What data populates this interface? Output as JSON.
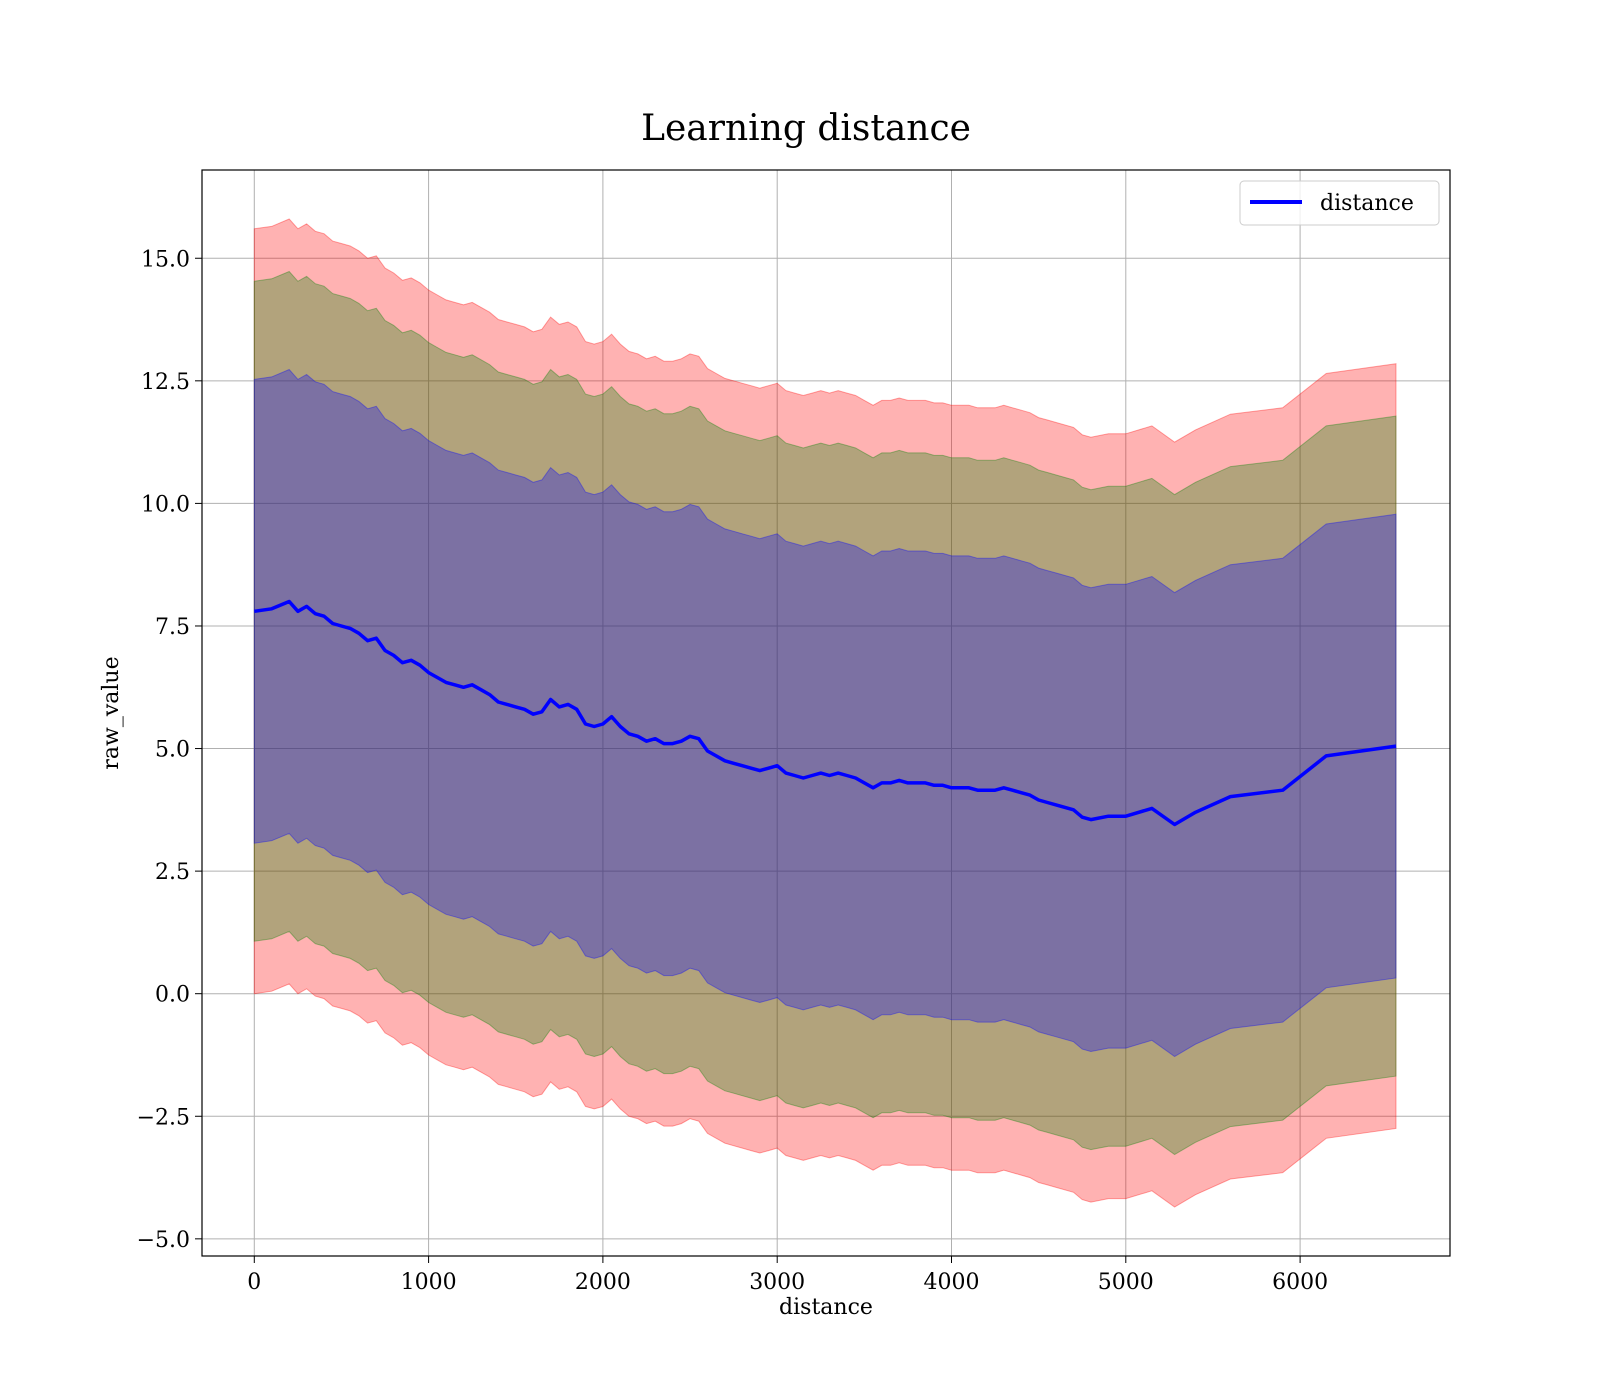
{
  "chart_data": {
    "type": "line",
    "title": "Learning distance",
    "xlabel": "distance",
    "ylabel": "raw_value",
    "xlim": [
      -300,
      6860
    ],
    "ylim": [
      -5.35,
      16.8
    ],
    "xticks": [
      0,
      1000,
      2000,
      3000,
      4000,
      5000,
      6000
    ],
    "yticks": [
      -5.0,
      -2.5,
      0.0,
      2.5,
      5.0,
      7.5,
      10.0,
      12.5,
      15.0
    ],
    "xtick_labels": [
      "0",
      "1000",
      "2000",
      "3000",
      "4000",
      "5000",
      "6000"
    ],
    "ytick_labels": [
      "−5.0",
      "−2.5",
      "0.0",
      "2.5",
      "5.0",
      "7.5",
      "10.0",
      "12.5",
      "15.0"
    ],
    "grid": true,
    "legend_position": "top-right",
    "series": [
      {
        "name": "distance",
        "color": "#0000ff",
        "x": [
          0,
          100,
          200,
          250,
          300,
          350,
          400,
          450,
          500,
          550,
          600,
          650,
          700,
          750,
          800,
          850,
          900,
          950,
          1000,
          1050,
          1100,
          1150,
          1200,
          1250,
          1300,
          1350,
          1400,
          1450,
          1500,
          1550,
          1600,
          1650,
          1700,
          1750,
          1800,
          1850,
          1900,
          1950,
          2000,
          2050,
          2100,
          2150,
          2200,
          2250,
          2300,
          2350,
          2400,
          2450,
          2500,
          2550,
          2600,
          2650,
          2700,
          2750,
          2800,
          2850,
          2900,
          2950,
          3000,
          3050,
          3100,
          3150,
          3200,
          3250,
          3300,
          3350,
          3400,
          3450,
          3500,
          3550,
          3600,
          3650,
          3700,
          3750,
          3800,
          3850,
          3900,
          3950,
          4000,
          4050,
          4100,
          4150,
          4200,
          4250,
          4300,
          4350,
          4400,
          4450,
          4500,
          4550,
          4600,
          4700,
          4750,
          4800,
          4900,
          5000,
          5150,
          5280,
          5400,
          5600,
          5900,
          6150,
          6550
        ],
        "values": [
          7.8,
          7.85,
          8.0,
          7.8,
          7.9,
          7.75,
          7.7,
          7.55,
          7.5,
          7.45,
          7.35,
          7.2,
          7.25,
          7.0,
          6.9,
          6.75,
          6.8,
          6.7,
          6.55,
          6.45,
          6.35,
          6.3,
          6.25,
          6.3,
          6.2,
          6.1,
          5.95,
          5.9,
          5.85,
          5.8,
          5.7,
          5.75,
          6.0,
          5.85,
          5.9,
          5.8,
          5.5,
          5.45,
          5.5,
          5.65,
          5.45,
          5.3,
          5.25,
          5.15,
          5.2,
          5.1,
          5.1,
          5.15,
          5.25,
          5.2,
          4.95,
          4.85,
          4.75,
          4.7,
          4.65,
          4.6,
          4.55,
          4.6,
          4.65,
          4.5,
          4.45,
          4.4,
          4.45,
          4.5,
          4.45,
          4.5,
          4.45,
          4.4,
          4.3,
          4.2,
          4.3,
          4.3,
          4.35,
          4.3,
          4.3,
          4.3,
          4.25,
          4.25,
          4.2,
          4.2,
          4.2,
          4.15,
          4.15,
          4.15,
          4.2,
          4.15,
          4.1,
          4.05,
          3.95,
          3.9,
          3.85,
          3.75,
          3.6,
          3.55,
          3.62,
          3.62,
          3.78,
          3.45,
          3.7,
          4.02,
          4.15,
          4.85,
          5.05
        ]
      }
    ],
    "bands": [
      {
        "color": "#ff0000",
        "alpha": 0.3,
        "half_width_start": 7.8,
        "half_width_end": 7.8
      },
      {
        "color": "#008000",
        "alpha": 0.3,
        "half_width_start": 6.73,
        "half_width_end": 6.73
      },
      {
        "color": "#0000ff",
        "alpha": 0.3,
        "half_width_start": 4.73,
        "half_width_end": 4.73
      }
    ]
  }
}
